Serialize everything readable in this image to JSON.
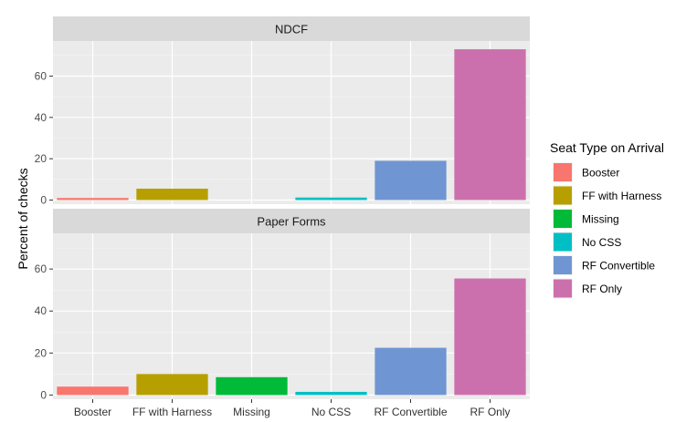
{
  "chart_data": {
    "type": "bar",
    "ylabel": "Percent of checks",
    "xlabel": "",
    "categories": [
      "Booster",
      "FF with Harness",
      "Missing",
      "No CSS",
      "RF Convertible",
      "RF Only"
    ],
    "colors": [
      "#f8766d",
      "#b79f00",
      "#00ba38",
      "#00bfc4",
      "#6f96d2",
      "#cc70ad"
    ],
    "yticks": [
      0,
      20,
      40,
      60
    ],
    "grid": true,
    "legend": {
      "title": "Seat Type on Arrival",
      "placement": "right",
      "entries": [
        "Booster",
        "FF with Harness",
        "Missing",
        "No CSS",
        "RF Convertible",
        "RF Only"
      ]
    },
    "panels": [
      {
        "title": "NDCF",
        "ylim": [
          -2,
          77
        ],
        "values": [
          1,
          5.5,
          0,
          1.2,
          19,
          73
        ]
      },
      {
        "title": "Paper Forms",
        "ylim": [
          -2,
          77
        ],
        "values": [
          4,
          10,
          8.5,
          1.5,
          22.5,
          55.5
        ]
      }
    ]
  }
}
